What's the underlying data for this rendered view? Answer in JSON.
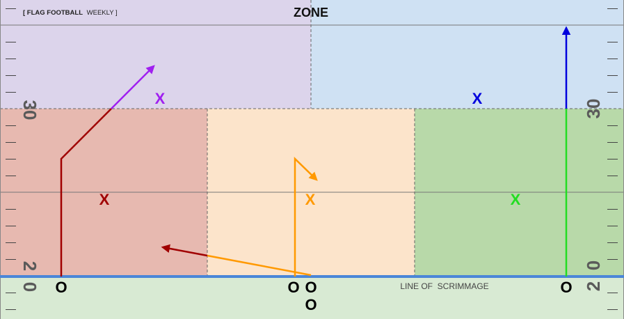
{
  "header": {
    "brand_prefix": "[ FLAG FOOTBALL",
    "brand_suffix": "WEEKLY ]",
    "title": "ZONE"
  },
  "field": {
    "line_of_scrimmage_label": "LINE OF  SCRIMMAGE",
    "yard_numbers": {
      "upper_left": "30",
      "upper_right": "30",
      "lower_left_top": "2",
      "lower_left_bottom": "0",
      "lower_right_left": "0",
      "lower_right_right": "2"
    }
  },
  "defense": {
    "marker": "X",
    "players": [
      {
        "zone": "deep-left",
        "color": "#a020f0"
      },
      {
        "zone": "deep-right",
        "color": "#0000dd"
      },
      {
        "zone": "flat-left",
        "color": "#a00000"
      },
      {
        "zone": "middle",
        "color": "#ff9900"
      },
      {
        "zone": "flat-right",
        "color": "#22dd22"
      }
    ]
  },
  "offense": {
    "marker": "O",
    "players": [
      {
        "name": "left-receiver"
      },
      {
        "name": "center-left"
      },
      {
        "name": "center-right"
      },
      {
        "name": "quarterback"
      },
      {
        "name": "right-receiver"
      }
    ]
  },
  "colors": {
    "deep_left_zone": "#dcd4eb",
    "deep_right_zone": "#cfe1f3",
    "flat_left_zone": "#e7b9b0",
    "middle_zone": "#fce4cb",
    "flat_right_zone": "#b8d9a9",
    "backfield": "#d8ead3",
    "scrimmage_line": "#4a86d8",
    "route_purple": "#a020f0",
    "route_darkred": "#a00000",
    "route_orange": "#ff9900",
    "route_blue": "#0000dd",
    "route_green": "#22dd22"
  }
}
